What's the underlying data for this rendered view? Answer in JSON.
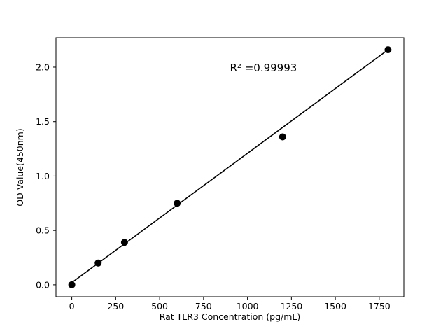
{
  "chart_data": {
    "type": "scatter",
    "title": "",
    "xlabel": "Rat TLR3 Concentration (pg/mL)",
    "ylabel": "OD Value(450nm)",
    "annotation": "R² =0.99993",
    "x": [
      0,
      150,
      300,
      600,
      1200,
      1800
    ],
    "y": [
      0.0,
      0.2,
      0.39,
      0.75,
      1.36,
      2.16
    ],
    "fit_line": {
      "x1": 0,
      "y1": 0.02,
      "x2": 1800,
      "y2": 2.16
    },
    "xlim": [
      -90,
      1890
    ],
    "ylim": [
      -0.11,
      2.27
    ],
    "xticks": [
      "0",
      "250",
      "500",
      "750",
      "1000",
      "1250",
      "1500",
      "1750"
    ],
    "yticks": [
      "0.0",
      "0.5",
      "1.0",
      "1.5",
      "2.0"
    ],
    "grid": false,
    "legend": "none",
    "point_color": "#000000",
    "line_color": "#000000",
    "axis_color": "#000000",
    "background": "#ffffff"
  }
}
